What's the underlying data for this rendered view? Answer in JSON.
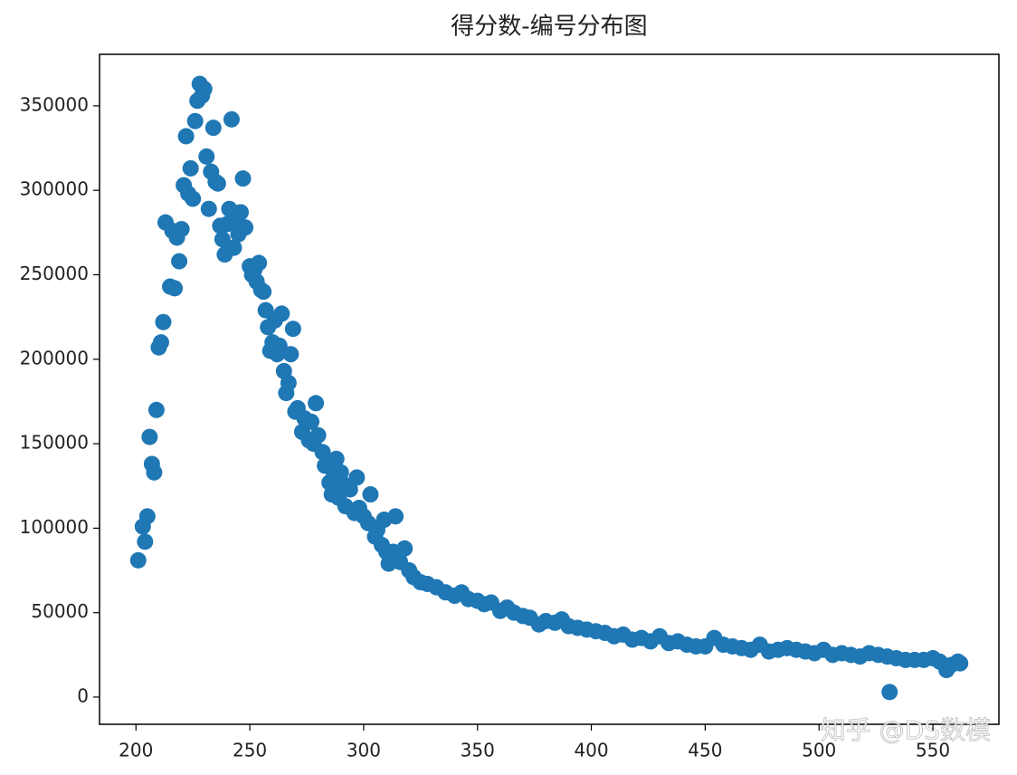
{
  "chart_data": {
    "type": "scatter",
    "title": "得分数-编号分布图",
    "watermark": "知乎 @DS数模",
    "color": "#1f77b4",
    "xlim": [
      184,
      579
    ],
    "ylim": [
      -16100,
      380500
    ],
    "xticks": [
      200,
      250,
      300,
      350,
      400,
      450,
      500,
      550
    ],
    "yticks": [
      0,
      50000,
      100000,
      150000,
      200000,
      250000,
      300000,
      350000
    ],
    "x": [
      201,
      203,
      204,
      205,
      206,
      207,
      208,
      209,
      210,
      211,
      212,
      213,
      215,
      216,
      217,
      218,
      219,
      220,
      221,
      222,
      223,
      224,
      225,
      226,
      227,
      228,
      229,
      230,
      231,
      232,
      233,
      234,
      235,
      236,
      237,
      238,
      239,
      240,
      241,
      242,
      243,
      244,
      245,
      246,
      247,
      248,
      250,
      251,
      252,
      253,
      254,
      255,
      256,
      257,
      258,
      259,
      260,
      261,
      262,
      263,
      264,
      265,
      266,
      267,
      268,
      269,
      270,
      271,
      273,
      274,
      276,
      277,
      278,
      279,
      280,
      282,
      283,
      285,
      286,
      287,
      288,
      289,
      290,
      291,
      292,
      294,
      296,
      297,
      298,
      300,
      302,
      303,
      305,
      306,
      308,
      309,
      310,
      311,
      313,
      314,
      316,
      318,
      320,
      322,
      325,
      328,
      332,
      336,
      340,
      343,
      346,
      350,
      353,
      356,
      360,
      363,
      366,
      370,
      373,
      377,
      380,
      384,
      387,
      390,
      394,
      398,
      402,
      406,
      410,
      414,
      418,
      422,
      426,
      430,
      434,
      438,
      442,
      446,
      450,
      454,
      458,
      462,
      466,
      470,
      474,
      478,
      482,
      486,
      490,
      494,
      498,
      502,
      506,
      510,
      514,
      518,
      522,
      526,
      530,
      531,
      534,
      538,
      542,
      546,
      550,
      553,
      556,
      558,
      561,
      562
    ],
    "values": [
      81000,
      101000,
      92000,
      107000,
      154000,
      138000,
      133000,
      170000,
      207000,
      210000,
      222000,
      281000,
      243000,
      276000,
      242000,
      272000,
      258000,
      277000,
      303000,
      332000,
      298000,
      313000,
      295000,
      341000,
      353000,
      363000,
      356000,
      360000,
      320000,
      289000,
      311000,
      337000,
      305000,
      304000,
      279000,
      271000,
      262000,
      280000,
      289000,
      342000,
      266000,
      282000,
      274000,
      287000,
      307000,
      278000,
      255000,
      250000,
      253000,
      246000,
      257000,
      241000,
      240000,
      229000,
      219000,
      205000,
      210000,
      223000,
      203000,
      208000,
      227000,
      193000,
      180000,
      186000,
      203000,
      218000,
      169000,
      171000,
      157000,
      165000,
      152000,
      163000,
      150000,
      174000,
      155000,
      145000,
      137000,
      127000,
      120000,
      132000,
      141000,
      118000,
      133000,
      126000,
      113000,
      123000,
      109000,
      130000,
      112000,
      107000,
      103000,
      120000,
      95000,
      99000,
      90000,
      105000,
      86000,
      79000,
      86000,
      107000,
      80000,
      88000,
      75000,
      71000,
      68000,
      67000,
      65000,
      62000,
      60000,
      62000,
      58000,
      57000,
      55000,
      56000,
      51000,
      53000,
      50000,
      48000,
      47000,
      43000,
      45000,
      44000,
      46000,
      42000,
      41000,
      40000,
      39000,
      38000,
      36000,
      37000,
      34000,
      35000,
      33000,
      36000,
      32000,
      33000,
      31000,
      30000,
      30000,
      35000,
      31000,
      30000,
      29000,
      28000,
      31000,
      27000,
      28000,
      29000,
      28000,
      27000,
      26000,
      28000,
      25000,
      26000,
      25000,
      24000,
      26000,
      25000,
      24000,
      3000,
      23000,
      22000,
      22000,
      22000,
      23000,
      21000,
      16000,
      19000,
      21000,
      20000
    ]
  }
}
